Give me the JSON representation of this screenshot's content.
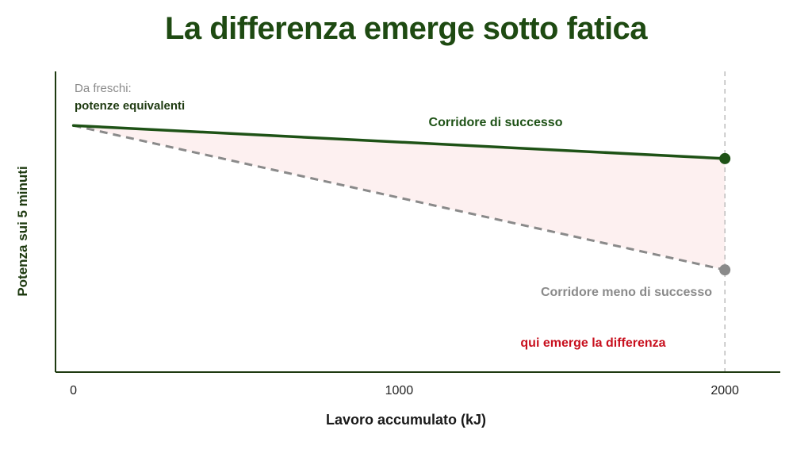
{
  "colors": {
    "title": "#1e4a12",
    "axis": "#1e3a10",
    "successful": "#1e5216",
    "less_successful": "#8a8a8a",
    "gap_fill": "#fdf0f0",
    "highlight_text": "#c8101e",
    "annotation_grey": "#8a8a8a",
    "annotation_dark": "#1e3a10",
    "reference_line": "#bdbdbd"
  },
  "chart_data": {
    "type": "line",
    "title": "La differenza emerge sotto fatica",
    "xlabel": "Lavoro accumulato (kJ)",
    "ylabel": "Potenza sui 5 minuti",
    "x_ticks": [
      "0",
      "1000",
      "2000"
    ],
    "xlim": [
      -55,
      2170
    ],
    "ylim": [
      0,
      100
    ],
    "y_ticks_shown": false,
    "grid": false,
    "reference_line_x": 2000,
    "series": [
      {
        "name": "Corridore di successo",
        "style": "solid",
        "color": "#1e5216",
        "x": [
          0,
          2000
        ],
        "y": [
          82,
          71
        ],
        "end_marker": true
      },
      {
        "name": "Corridore meno di successo",
        "style": "dashed",
        "color": "#8a8a8a",
        "x": [
          0,
          2000
        ],
        "y": [
          82,
          34
        ],
        "end_marker": true
      }
    ],
    "shaded_gap": {
      "between": [
        "Corridore di successo",
        "Corridore meno di successo"
      ],
      "color": "#fdf0f0"
    },
    "annotations": {
      "start_line1": "Da freschi:",
      "start_line2": "potenze equivalenti",
      "highlight": "qui emerge la differenza"
    }
  }
}
